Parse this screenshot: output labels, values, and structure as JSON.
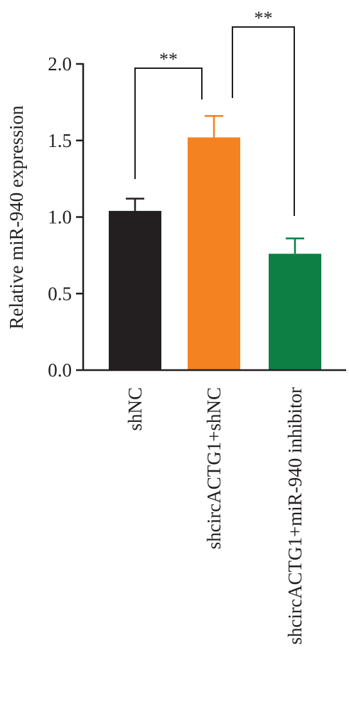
{
  "chart_data": {
    "type": "bar",
    "title": "",
    "xlabel": "",
    "ylabel": "Relative miR-940 expression",
    "ylim": [
      0,
      2.0
    ],
    "yticks": [
      "0.0",
      "0.5",
      "1.0",
      "1.5",
      "2.0"
    ],
    "ytick_values": [
      0,
      0.5,
      1.0,
      1.5,
      2.0
    ],
    "categories": [
      "shNC",
      "shcircACTG1+shNC",
      "shcircACTG1+miR-940 inhibitor"
    ],
    "values": [
      1.04,
      1.52,
      0.76
    ],
    "errors": [
      0.08,
      0.14,
      0.1
    ],
    "colors": [
      "#231f20",
      "#f58220",
      "#0d7f45"
    ],
    "grid": false,
    "legend": "none",
    "significance": [
      {
        "from": 0,
        "to": 1,
        "label": "**"
      },
      {
        "from": 1,
        "to": 2,
        "label": "**"
      }
    ]
  }
}
